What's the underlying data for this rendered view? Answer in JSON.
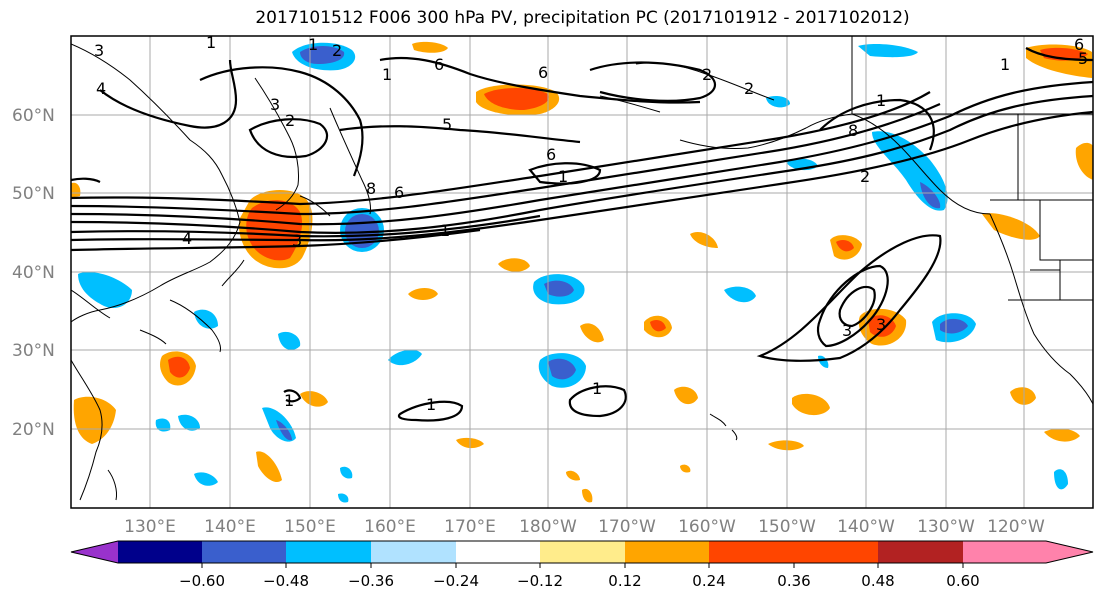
{
  "title": "2017101512 F006 300 hPa PV, precipitation PC (2017101912 - 2017102012)",
  "lat_labels": [
    "60°N",
    "50°N",
    "40°N",
    "30°N",
    "20°N"
  ],
  "lon_labels": [
    "130°E",
    "140°E",
    "150°E",
    "160°E",
    "170°E",
    "180°W",
    "170°W",
    "160°W",
    "150°W",
    "140°W",
    "130°W",
    "120°W"
  ],
  "colorbar": {
    "colors": [
      "#9932cc",
      "#00008b",
      "#3a5fcd",
      "#00bfff",
      "#b0e2ff",
      "#ffffff",
      "#ffec8b",
      "#ffa500",
      "#ff4500",
      "#b22222",
      "#ff82ab"
    ],
    "tick_labels": [
      "−0.60",
      "−0.48",
      "−0.36",
      "−0.24",
      "−0.12",
      "0.12",
      "0.24",
      "0.36",
      "0.48",
      "0.60"
    ]
  },
  "contour_labels": [
    "3",
    "1",
    "2",
    "1",
    "4",
    "3",
    "2",
    "1",
    "6",
    "6",
    "5",
    "2",
    "2",
    "6",
    "1",
    "8",
    "6",
    "4",
    "3",
    "1",
    "1",
    "1",
    "1",
    "3",
    "3",
    "1",
    "8",
    "2",
    "1",
    "5",
    "6"
  ],
  "colors": {
    "contour": "#000000",
    "grid": "#a9a9a9",
    "coast": "#000000"
  }
}
